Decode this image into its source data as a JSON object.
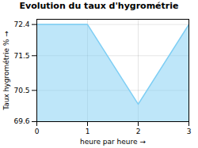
{
  "chart_data": {
    "type": "area",
    "title": "Evolution du taux d'hygrométrie",
    "xlabel": "heure par heure",
    "ylabel": "Taux hygrométrie %",
    "x": [
      0,
      1,
      2,
      3
    ],
    "values": [
      72.4,
      72.4,
      70.1,
      72.4
    ],
    "color": "#7ecef4",
    "xlim": [
      0,
      3
    ],
    "ylim": [
      69.6,
      72.55
    ],
    "xticks": [
      0,
      1,
      2,
      3
    ],
    "yticks": [
      69.6,
      70.5,
      71.5,
      72.4
    ],
    "grid": true
  }
}
